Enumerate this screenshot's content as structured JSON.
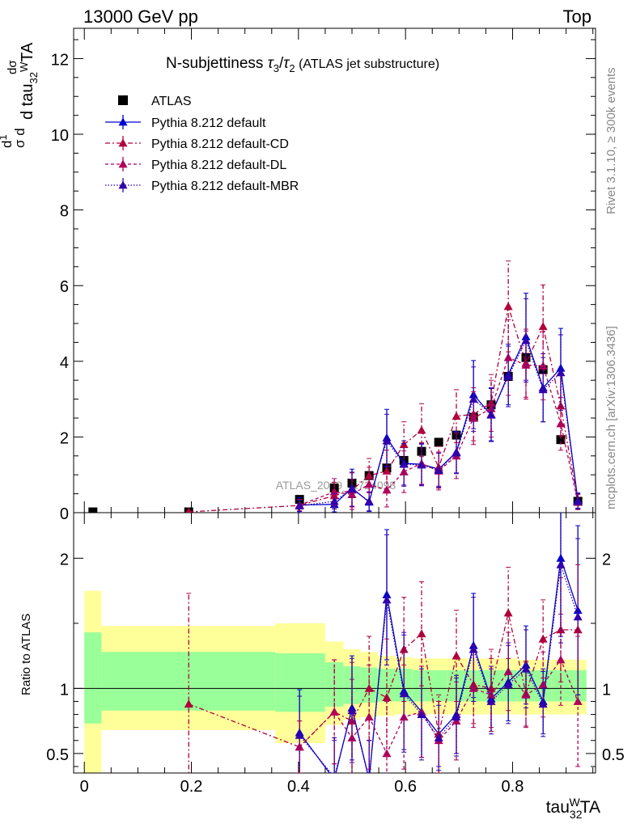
{
  "header": {
    "left": "13000 GeV pp",
    "right": "Top"
  },
  "side_labels": {
    "rivet": "Rivet 3.1.10, ≥ 300k events",
    "mcplots": "mcplots.cern.ch [arXiv:1306.3436]"
  },
  "watermark": "ATLAS_2019_I1724098",
  "colors": {
    "atlas": "#000000",
    "default": "#0000cc",
    "cd": "#b0003a",
    "dl": "#b0005a",
    "mbr": "#3300aa",
    "band_inner": "#99ff99",
    "band_outer": "#ffff99"
  },
  "chart_data": [
    {
      "type": "scatter",
      "title": "N-subjettiness τ₃/τ₂ (ATLAS jet substructure)",
      "title_main": "N-subjettiness ",
      "title_paren": "(ATLAS jet substructure)",
      "ylabel": "dσ / d tau₃₂ᵂTA · 1/σ",
      "xlim": [
        -0.02,
        0.955
      ],
      "ylim": [
        0,
        12.8
      ],
      "yticks": [
        0,
        2,
        4,
        6,
        8,
        10,
        12
      ],
      "legend_placement": "top-left",
      "legend": [
        "ATLAS",
        "Pythia 8.212 default",
        "Pythia 8.212 default-CD",
        "Pythia 8.212 default-DL",
        "Pythia 8.212 default-MBR"
      ],
      "series": [
        {
          "name": "ATLAS",
          "x": [
            0.016,
            0.195,
            0.402,
            0.467,
            0.5,
            0.532,
            0.565,
            0.597,
            0.63,
            0.662,
            0.695,
            0.727,
            0.76,
            0.792,
            0.825,
            0.857,
            0.89,
            0.922
          ],
          "y": [
            0.02,
            0.02,
            0.35,
            0.65,
            0.78,
            0.98,
            1.18,
            1.38,
            1.62,
            1.86,
            2.05,
            2.52,
            2.85,
            3.6,
            4.1,
            3.78,
            1.93,
            0.3
          ]
        },
        {
          "name": "Pythia 8.212 default",
          "x": [
            0.402,
            0.467,
            0.5,
            0.532,
            0.565,
            0.597,
            0.63,
            0.662,
            0.695,
            0.727,
            0.76,
            0.792,
            0.825,
            0.857,
            0.89,
            0.922
          ],
          "y": [
            0.2,
            0.22,
            0.65,
            0.28,
            1.98,
            1.3,
            1.28,
            1.15,
            1.6,
            3.12,
            2.58,
            3.65,
            4.65,
            3.3,
            3.82,
            0.32
          ],
          "err": [
            0.2,
            0.2,
            0.5,
            0.25,
            0.75,
            0.6,
            0.55,
            0.45,
            0.55,
            0.9,
            0.7,
            0.8,
            1.15,
            0.9,
            1.05,
            0.2
          ]
        },
        {
          "name": "Pythia 8.212 default-CD",
          "x": [
            0.195,
            0.402,
            0.467,
            0.5,
            0.532,
            0.565,
            0.597,
            0.63,
            0.662,
            0.695,
            0.727,
            0.76,
            0.792,
            0.825,
            0.857,
            0.89,
            0.922
          ],
          "y": [
            0.02,
            0.19,
            0.45,
            0.6,
            0.98,
            1.1,
            1.8,
            2.18,
            1.2,
            2.55,
            2.6,
            2.9,
            5.45,
            3.95,
            4.92,
            2.82,
            0.3
          ],
          "err": [
            0.02,
            0.15,
            0.35,
            0.45,
            0.45,
            0.55,
            0.6,
            0.7,
            0.55,
            0.7,
            0.7,
            0.75,
            1.2,
            0.9,
            1.1,
            0.8,
            0.2
          ]
        },
        {
          "name": "Pythia 8.212 default-DL",
          "x": [
            0.402,
            0.467,
            0.5,
            0.532,
            0.565,
            0.597,
            0.63,
            0.662,
            0.695,
            0.727,
            0.76,
            0.792,
            0.825,
            0.857,
            0.89,
            0.922
          ],
          "y": [
            0.2,
            0.55,
            0.48,
            0.75,
            0.6,
            1.08,
            1.3,
            1.1,
            1.5,
            2.5,
            2.75,
            4.1,
            3.9,
            3.88,
            2.35,
            0.28
          ],
          "err": [
            0.15,
            0.35,
            0.4,
            0.45,
            0.45,
            0.55,
            0.55,
            0.5,
            0.6,
            0.7,
            0.75,
            1.0,
            0.9,
            0.9,
            0.7,
            0.2
          ]
        },
        {
          "name": "Pythia 8.212 default-MBR",
          "x": [
            0.402,
            0.467,
            0.5,
            0.532,
            0.565,
            0.597,
            0.63,
            0.662,
            0.695,
            0.727,
            0.76,
            0.792,
            0.825,
            0.857,
            0.89,
            0.922
          ],
          "y": [
            0.18,
            0.3,
            0.62,
            0.3,
            1.9,
            1.28,
            1.26,
            1.12,
            1.58,
            3.0,
            2.6,
            3.6,
            4.55,
            3.25,
            3.7,
            0.3
          ],
          "err": [
            0.15,
            0.2,
            0.45,
            0.25,
            0.7,
            0.55,
            0.55,
            0.45,
            0.55,
            0.85,
            0.7,
            0.8,
            1.1,
            0.85,
            1.0,
            0.2
          ]
        }
      ]
    },
    {
      "type": "scatter",
      "title": "",
      "ylabel": "Ratio to ATLAS",
      "xlabel": "tau₃₂ᵂTA",
      "xlim": [
        -0.02,
        0.955
      ],
      "ylim": [
        0.35,
        2.35
      ],
      "yticks": [
        0.5,
        1,
        2
      ],
      "xticks": [
        0,
        0.2,
        0.4,
        0.6,
        0.8
      ],
      "xtick_labels": [
        "0",
        "0.2",
        "0.4",
        "0.6",
        "0.8"
      ],
      "bands": {
        "x_edges": [
          0,
          0.032,
          0.357,
          0.45,
          0.484,
          0.516,
          0.548,
          0.581,
          0.613,
          0.646,
          0.678,
          0.711,
          0.743,
          0.776,
          0.808,
          0.841,
          0.873,
          0.906,
          0.938
        ],
        "outer_low": [
          0.35,
          0.68,
          0.58,
          0.72,
          0.76,
          0.78,
          0.79,
          0.8,
          0.8,
          0.8,
          0.8,
          0.8,
          0.8,
          0.8,
          0.8,
          0.8,
          0.8,
          0.8
        ],
        "outer_high": [
          1.75,
          1.48,
          1.5,
          1.36,
          1.3,
          1.28,
          1.25,
          1.24,
          1.23,
          1.23,
          1.23,
          1.23,
          1.23,
          1.23,
          1.22,
          1.22,
          1.22,
          1.22
        ],
        "inner_low": [
          0.73,
          0.83,
          0.82,
          0.86,
          0.88,
          0.89,
          0.9,
          0.9,
          0.9,
          0.9,
          0.9,
          0.9,
          0.9,
          0.9,
          0.9,
          0.9,
          0.9,
          0.9
        ],
        "inner_high": [
          1.43,
          1.28,
          1.27,
          1.2,
          1.17,
          1.16,
          1.15,
          1.15,
          1.14,
          1.14,
          1.14,
          1.14,
          1.14,
          1.14,
          1.14,
          1.14,
          1.14,
          1.14
        ]
      },
      "series": [
        {
          "name": "Pythia 8.212 default",
          "x": [
            0.402,
            0.467,
            0.5,
            0.532,
            0.565,
            0.597,
            0.63,
            0.662,
            0.695,
            0.727,
            0.76,
            0.792,
            0.825,
            0.857,
            0.89,
            0.922
          ],
          "y": [
            0.66,
            0.3,
            0.85,
            0.3,
            1.72,
            0.98,
            0.82,
            0.65,
            0.8,
            1.33,
            0.92,
            1.05,
            1.18,
            0.9,
            2.0,
            1.6
          ],
          "err": [
            0.33,
            0.3,
            0.4,
            0.3,
            0.5,
            0.45,
            0.35,
            0.25,
            0.3,
            0.4,
            0.25,
            0.3,
            0.3,
            0.25,
            0.6,
            0.65
          ]
        },
        {
          "name": "Pythia 8.212 default-CD",
          "x": [
            0.195,
            0.402,
            0.467,
            0.5,
            0.532,
            0.565,
            0.597,
            0.63,
            0.662,
            0.695,
            0.727,
            0.76,
            0.792,
            0.825,
            0.857,
            0.89,
            0.922
          ],
          "y": [
            0.88,
            0.55,
            0.82,
            0.75,
            1.0,
            0.93,
            1.3,
            1.42,
            0.65,
            1.25,
            1.03,
            1.0,
            1.58,
            0.96,
            1.38,
            1.45,
            1.45
          ],
          "err": [
            0.85,
            0.2,
            0.4,
            0.45,
            0.4,
            0.45,
            0.4,
            0.4,
            0.3,
            0.35,
            0.3,
            0.3,
            0.35,
            0.25,
            0.3,
            0.4,
            0.5
          ]
        },
        {
          "name": "Pythia 8.212 default-DL",
          "x": [
            0.402,
            0.467,
            0.5,
            0.532,
            0.565,
            0.597,
            0.63,
            0.662,
            0.695,
            0.727,
            0.76,
            0.792,
            0.825,
            0.857,
            0.89,
            0.922
          ],
          "y": [
            0.55,
            0.82,
            0.62,
            0.78,
            0.5,
            0.78,
            0.82,
            0.6,
            0.75,
            1.0,
            0.95,
            1.13,
            0.95,
            1.03,
            1.22,
            0.9
          ],
          "err": [
            0.2,
            0.4,
            0.45,
            0.4,
            0.4,
            0.4,
            0.35,
            0.3,
            0.3,
            0.3,
            0.28,
            0.3,
            0.25,
            0.25,
            0.35,
            0.5
          ]
        },
        {
          "name": "Pythia 8.212 default-MBR",
          "x": [
            0.402,
            0.467,
            0.5,
            0.532,
            0.565,
            0.597,
            0.63,
            0.662,
            0.695,
            0.727,
            0.76,
            0.792,
            0.825,
            0.857,
            0.89,
            0.922
          ],
          "y": [
            0.64,
            0.32,
            0.83,
            0.3,
            1.68,
            0.96,
            0.8,
            0.62,
            0.78,
            1.3,
            0.9,
            1.03,
            1.15,
            0.88,
            1.95,
            1.55
          ],
          "err": [
            0.3,
            0.3,
            0.4,
            0.3,
            0.5,
            0.45,
            0.35,
            0.25,
            0.3,
            0.4,
            0.25,
            0.3,
            0.3,
            0.25,
            0.6,
            0.6
          ]
        }
      ]
    }
  ]
}
